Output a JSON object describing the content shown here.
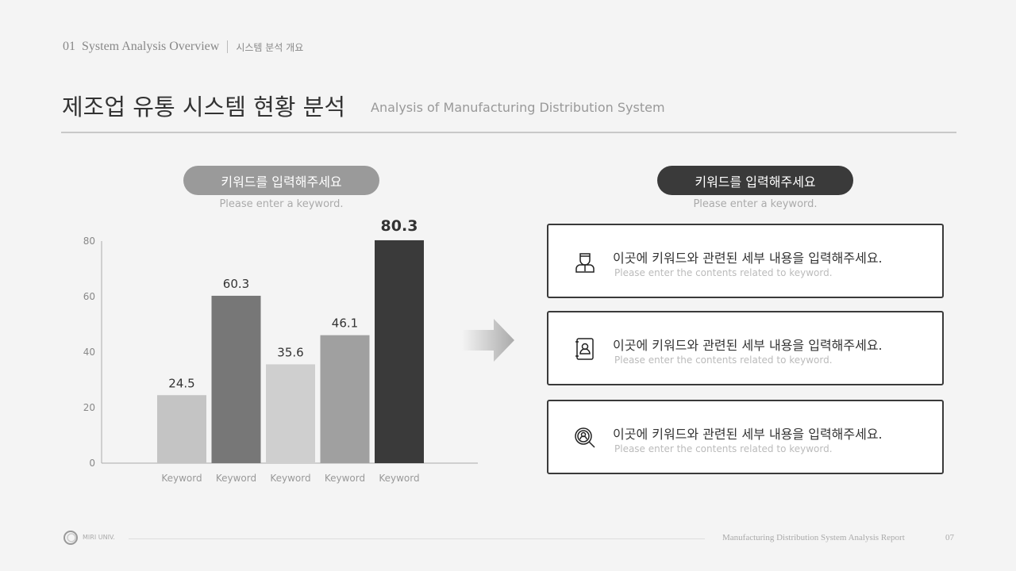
{
  "header": {
    "section_label": "01  System Analysis Overview",
    "section_label_ko": "시스템 분석 개요",
    "title": "제조업 유통 시스템 현황 분석",
    "subtitle": "Analysis of Manufacturing Distribution System"
  },
  "left": {
    "pill_label": "키워드를 입력해주세요",
    "pill_sub": "Please enter a keyword.",
    "pill_color": "#9a9a9a"
  },
  "right": {
    "pill_label": "키워드를 입력해주세요",
    "pill_sub": "Please enter a keyword.",
    "pill_color": "#3a3a3a",
    "cards": [
      {
        "icon": "businessman-icon",
        "title": "이곳에 키워드와 관련된 세부 내용을 입력해주세요.",
        "desc": "Please enter the contents related to keyword."
      },
      {
        "icon": "contact-book-icon",
        "title": "이곳에 키워드와 관련된 세부 내용을 입력해주세요.",
        "desc": "Please enter the contents related to keyword."
      },
      {
        "icon": "search-person-icon",
        "title": "이곳에 키워드와 관련된 세부 내용을 입력해주세요.",
        "desc": "Please enter the contents related to keyword."
      }
    ]
  },
  "chart_data": {
    "type": "bar",
    "categories": [
      "Keyword",
      "Keyword",
      "Keyword",
      "Keyword",
      "Keyword"
    ],
    "values": [
      24.5,
      60.3,
      35.6,
      46.1,
      80.3
    ],
    "data_labels": [
      "24.5",
      "60.3",
      "35.6",
      "46.1",
      "80.3"
    ],
    "colors": [
      "#c4c4c4",
      "#777777",
      "#cfcfcf",
      "#a0a0a0",
      "#3a3a3a"
    ],
    "ylim": [
      0,
      80
    ],
    "yticks": [
      "0",
      "20",
      "40",
      "60",
      "80"
    ],
    "grid": false
  },
  "footer": {
    "logo_text": "MIRI UNIV.",
    "report": "Manufacturing Distribution System Analysis Report",
    "page": "07"
  }
}
